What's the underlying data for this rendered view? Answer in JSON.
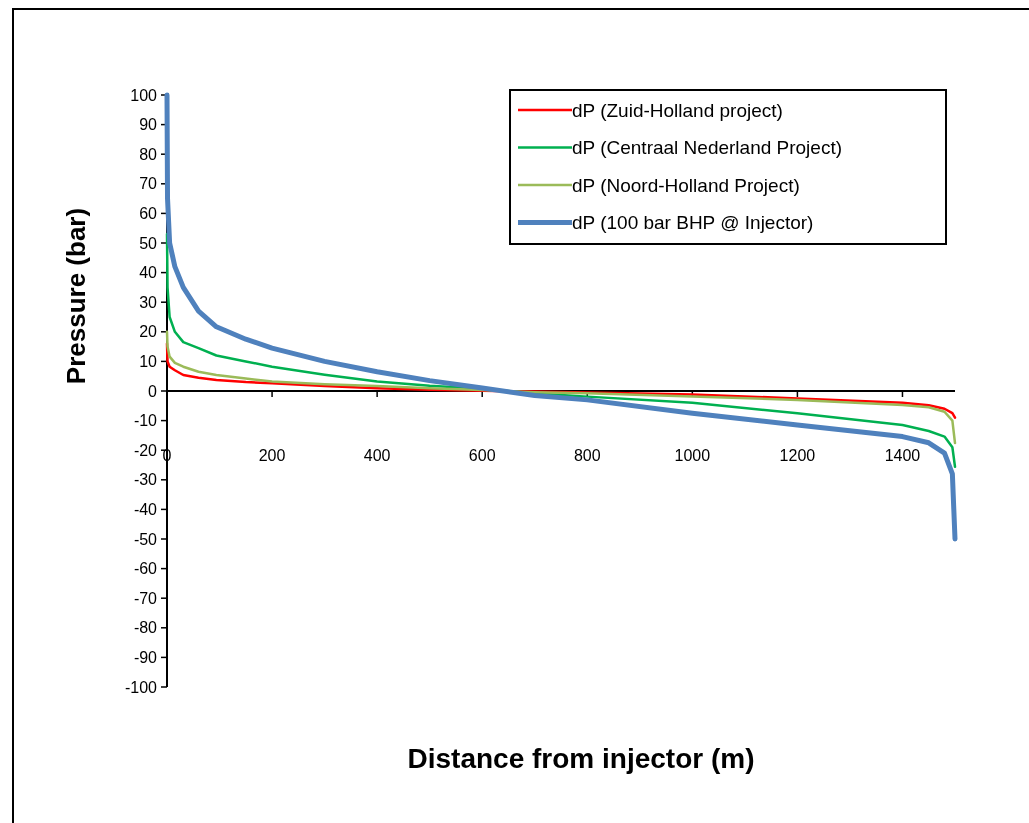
{
  "chart_data": {
    "type": "line",
    "xlabel": "Distance from injector (m)",
    "ylabel": "Pressure (bar)",
    "x": [
      0,
      1,
      5,
      15,
      31,
      60,
      94,
      150,
      200,
      300,
      400,
      500,
      600,
      700,
      800,
      1000,
      1200,
      1400,
      1450,
      1480,
      1495,
      1500
    ],
    "xlim": [
      0,
      1500
    ],
    "xticks": [
      0,
      200,
      400,
      600,
      800,
      1000,
      1200,
      1400
    ],
    "ylim": [
      -100,
      100
    ],
    "yticks": [
      -100,
      -90,
      -80,
      -70,
      -60,
      -50,
      -40,
      -30,
      -20,
      -10,
      0,
      10,
      20,
      30,
      40,
      50,
      60,
      70,
      80,
      90,
      100
    ],
    "legend": "top right",
    "marker": "none",
    "series": [
      {
        "name": "dP (Zuid-Holland project)",
        "color": "#ff0000",
        "values": [
          16,
          10,
          8.2,
          7,
          5.4,
          4.5,
          3.7,
          3,
          2.6,
          1.7,
          0.9,
          0.4,
          0.1,
          -0.2,
          -0.5,
          -1.2,
          -2.5,
          -4,
          -4.8,
          -6,
          -7.5,
          -9
        ]
      },
      {
        "name": "dP (Centraal Nederland Project)",
        "color": "#00b050",
        "values": [
          53,
          35,
          25,
          20,
          16.5,
          14.5,
          12,
          10,
          8.2,
          5.5,
          3.2,
          1.8,
          0.8,
          -0.8,
          -1.9,
          -4,
          -7.5,
          -11.5,
          -13.5,
          -15.4,
          -19,
          -25.6
        ]
      },
      {
        "name": "dP (Noord-Holland Project)",
        "color": "#9bbb59",
        "values": [
          20,
          15,
          11.6,
          9.5,
          8.2,
          6.5,
          5.4,
          4.2,
          3.2,
          2.3,
          1.7,
          0.9,
          0.3,
          -0.4,
          -0.8,
          -1.9,
          -3,
          -4.7,
          -5.5,
          -7,
          -10,
          -17.6
        ]
      },
      {
        "name": "dP (100 bar BHP @ Injector)",
        "color": "#4f81bd",
        "values": [
          100,
          65,
          50,
          42,
          35,
          27,
          21.7,
          17.5,
          14.5,
          10,
          6.5,
          3.5,
          1,
          -1.5,
          -3,
          -7.5,
          -11.5,
          -15.4,
          -17.5,
          -21,
          -28,
          -50
        ]
      }
    ]
  }
}
